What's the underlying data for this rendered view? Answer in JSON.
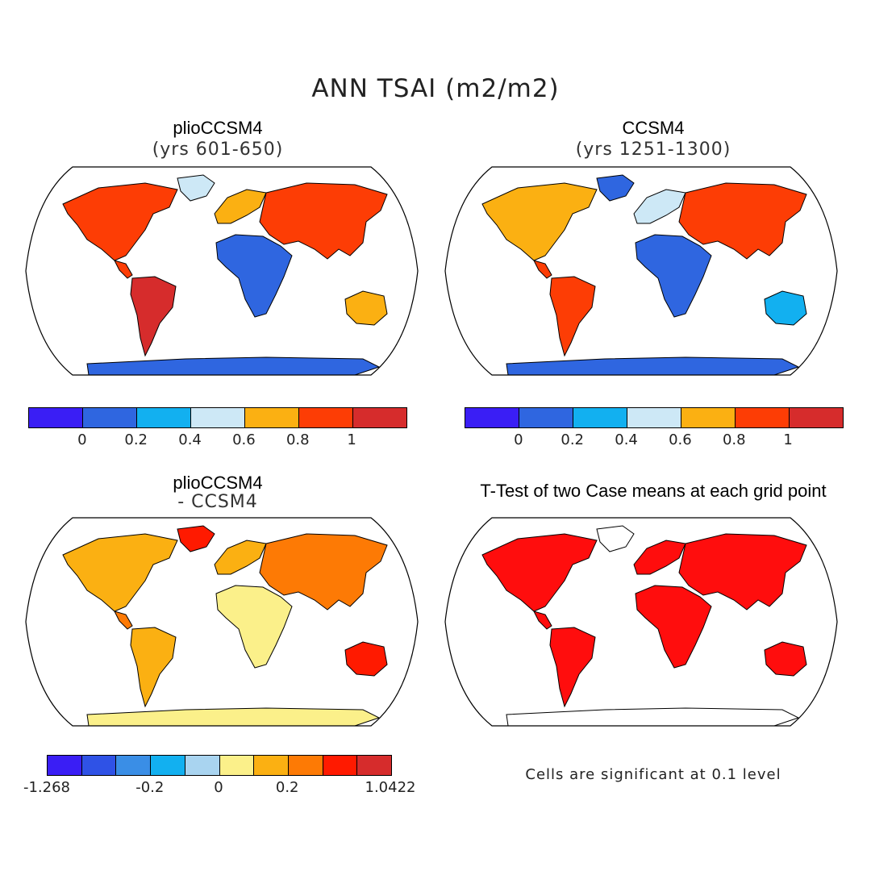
{
  "figure": {
    "title": "ANN TSAI (m2/m2)"
  },
  "panels": {
    "top_left": {
      "title": "plioCCSM4",
      "subtitle": "(yrs 601-650)"
    },
    "top_right": {
      "title": "CCSM4",
      "subtitle": "(yrs 1251-1300)"
    },
    "bottom_left": {
      "title": "plioCCSM4",
      "subtitle": "- CCSM4"
    },
    "bottom_right": {
      "title": "T-Test of two Case means at each grid point",
      "note": "Cells are significant at 0.1 level"
    }
  },
  "colorbars": {
    "top": {
      "colors": [
        "#3a1ef5",
        "#2f66e0",
        "#12b0f0",
        "#cde8f6",
        "#fbb012",
        "#fd3d05",
        "#d62c2c"
      ],
      "ticks": [
        "0",
        "0.2",
        "0.4",
        "0.6",
        "0.8",
        "1"
      ]
    },
    "bottom": {
      "colors": [
        "#3a1ef5",
        "#2f52e6",
        "#3a8ee6",
        "#12b0f0",
        "#a9d4f0",
        "#fbf08a",
        "#fbb012",
        "#fd7a05",
        "#ff1a00",
        "#d62c2c"
      ],
      "ticks": [
        "-1.268",
        "-0.2",
        "0",
        "0.2",
        "1.0422"
      ]
    }
  },
  "map_colors": {
    "ocean": "#ffffff",
    "outline": "#000000",
    "significant": "#ff0d0d"
  }
}
